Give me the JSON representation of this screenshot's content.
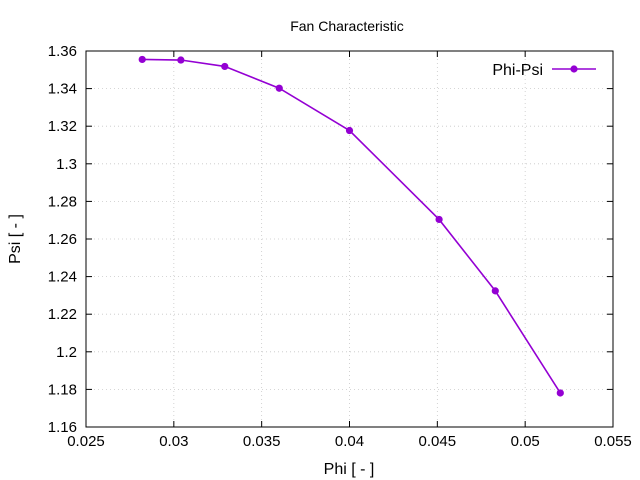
{
  "chart_data": {
    "type": "line",
    "title": "Fan Characteristic",
    "xlabel": "Phi [ - ]",
    "ylabel": "Psi [ - ]",
    "xlim": [
      0.025,
      0.055
    ],
    "ylim": [
      1.16,
      1.36
    ],
    "x_ticks": [
      "0.025",
      "0.03",
      "0.035",
      "0.04",
      "0.045",
      "0.05",
      "0.055"
    ],
    "y_ticks": [
      "1.16",
      "1.18",
      "1.2",
      "1.22",
      "1.24",
      "1.26",
      "1.28",
      "1.3",
      "1.32",
      "1.34",
      "1.36"
    ],
    "grid": true,
    "legend_position": "top-right",
    "series": [
      {
        "name": "Phi-Psi",
        "color": "#9400d3",
        "marker": "circle",
        "x": [
          0.0282,
          0.0304,
          0.0329,
          0.036,
          0.04,
          0.0451,
          0.0483,
          0.052
        ],
        "y": [
          1.3555,
          1.3552,
          1.3518,
          1.3402,
          1.3177,
          1.2704,
          1.2324,
          1.1781
        ]
      }
    ]
  }
}
